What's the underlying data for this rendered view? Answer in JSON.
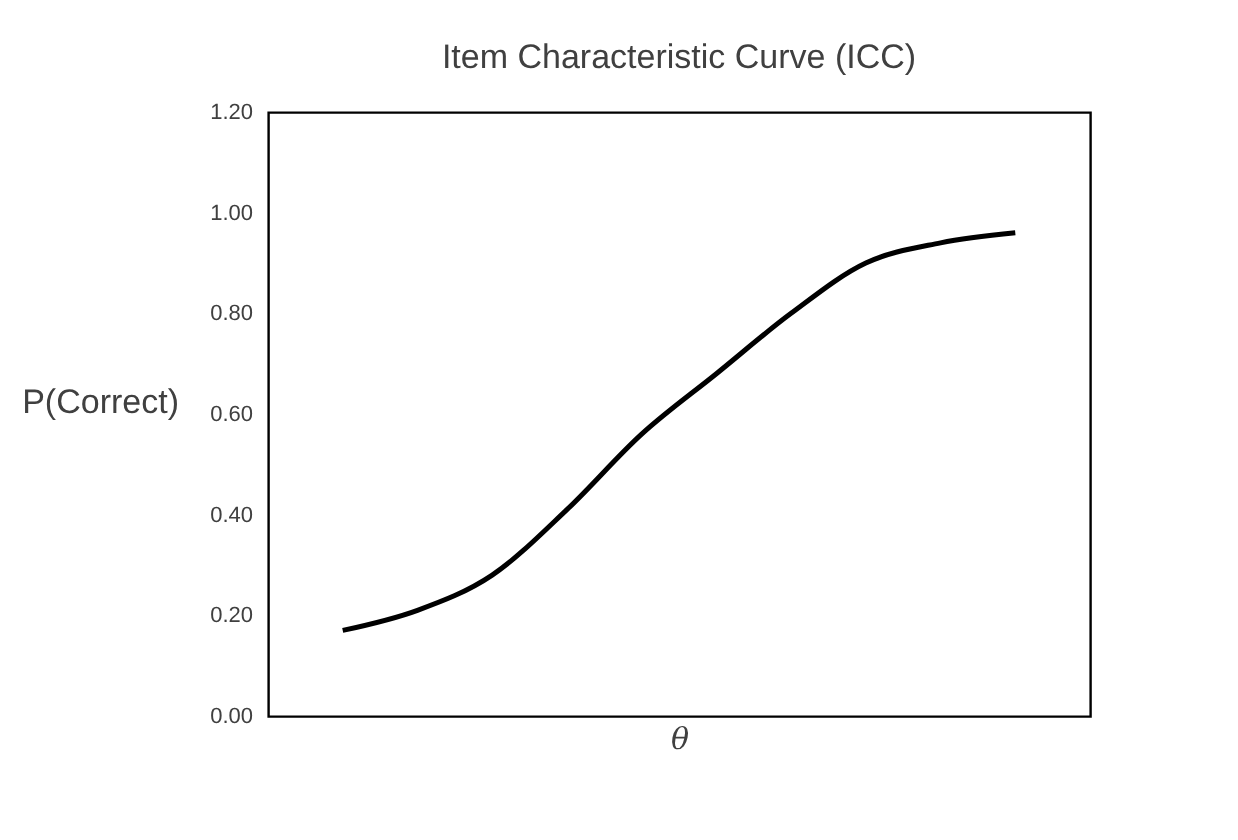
{
  "chart_data": {
    "type": "line",
    "title": "Item Characteristic Curve (ICC)",
    "xlabel": "θ",
    "ylabel": "P(Correct)",
    "categories": [
      null,
      null,
      null,
      null,
      null,
      null,
      null,
      null,
      null,
      null
    ],
    "series": [
      {
        "color": "#000000",
        "values": [
          0.17,
          0.21,
          0.28,
          0.41,
          0.56,
          0.68,
          0.8,
          0.9,
          0.94,
          0.96
        ]
      }
    ],
    "ylim": [
      0,
      1.2
    ],
    "yticks": [
      {
        "value": 0,
        "label": "0.00"
      },
      {
        "value": 0.2,
        "label": "0.20"
      },
      {
        "value": 0.4,
        "label": "0.40"
      },
      {
        "value": 0.6,
        "label": "0.60"
      },
      {
        "value": 0.8,
        "label": "0.80"
      },
      {
        "value": 1.0,
        "label": "1.00"
      },
      {
        "value": 1.2,
        "label": "1.20"
      }
    ],
    "grid": false,
    "legend": false,
    "marker": "none",
    "line_style": "solid",
    "tick_labels": "y"
  }
}
